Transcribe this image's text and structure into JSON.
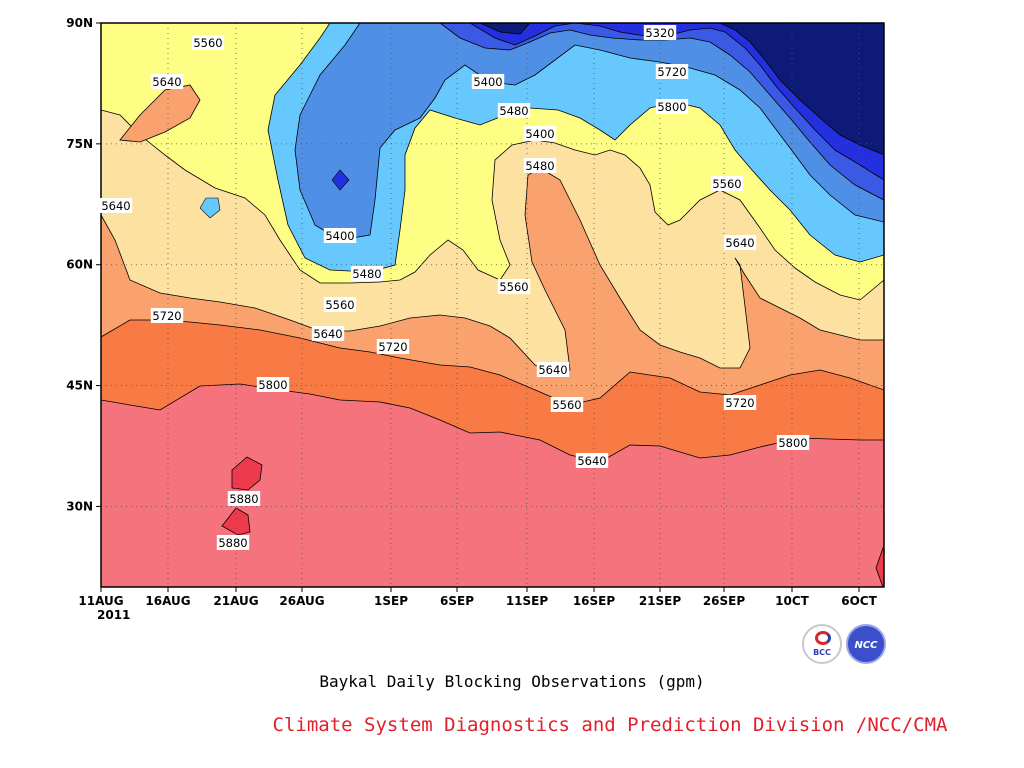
{
  "chart_data": {
    "type": "contour",
    "caption": "Baykal Daily Blocking Observations (gpm)",
    "x_ticks": [
      "11AUG",
      "16AUG",
      "21AUG",
      "26AUG",
      "1SEP",
      "6SEP",
      "11SEP",
      "16SEP",
      "21SEP",
      "26SEP",
      "10CT",
      "6OCT"
    ],
    "x_year": "2011",
    "y_ticks": [
      "30N",
      "45N",
      "60N",
      "75N",
      "90N"
    ],
    "ylim_deg": [
      20,
      90
    ],
    "xlim_days": [
      0,
      56.5
    ],
    "grid": "dotted",
    "contour_levels": [
      5320,
      5400,
      5480,
      5560,
      5640,
      5720,
      5800,
      5880
    ],
    "contour_labels": [
      "5560",
      "5640",
      "5640",
      "5400",
      "5480",
      "5560",
      "5640",
      "5720",
      "5720",
      "5800",
      "5880",
      "5880",
      "5320",
      "5400",
      "5480",
      "5400",
      "5480",
      "5560",
      "5640",
      "5560",
      "5640",
      "5720",
      "5800",
      "5560",
      "5640",
      "5720",
      "5800"
    ],
    "colors": {
      "5880": "#ee3a4c",
      "5800": "#f4737c",
      "5720": "#f87a45",
      "5640": "#faa26e",
      "5560": "#fde1a0",
      "5480": "#fefd84",
      "5400": "#66c8fd",
      "5320": "#4f8fe6",
      "5240": "#3a5ae5",
      "5160": "#2430e0",
      "below": "#0e1a78"
    }
  },
  "footer": {
    "caption": "Baykal Daily Blocking Observations (gpm)",
    "credit": "Climate System Diagnostics and Prediction Division /NCC/CMA",
    "logo_bcc_text": "BCC",
    "logo_ncc_text": "NCC"
  }
}
